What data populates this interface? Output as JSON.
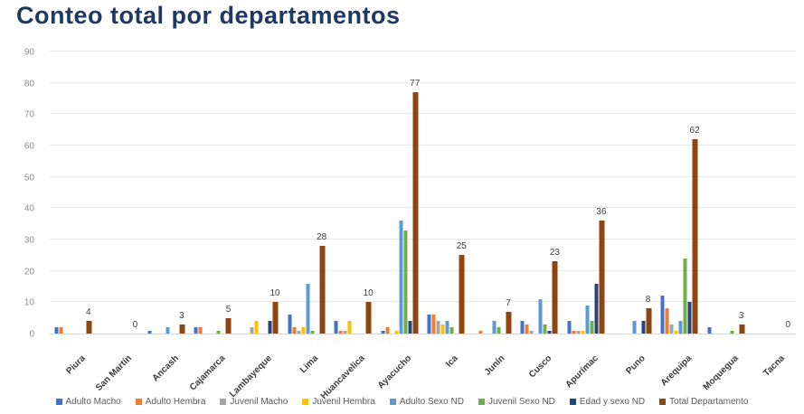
{
  "title": "Conteo total por departamentos",
  "chart_data": {
    "type": "bar",
    "title": "Conteo total por departamentos",
    "categories": [
      "Piura",
      "San Martín",
      "Ancash",
      "Cajamarca",
      "Lambayeque",
      "Lima",
      "Huancavelica",
      "Ayacucho",
      "Ica",
      "Junín",
      "Cusco",
      "Apurímac",
      "Puno",
      "Arequipa",
      "Moquegua",
      "Tacna"
    ],
    "series": [
      {
        "name": "Adulto Macho",
        "color": "#4472c4",
        "values": [
          2,
          0,
          1,
          2,
          0,
          6,
          4,
          1,
          6,
          0,
          4,
          4,
          0,
          12,
          2,
          0
        ]
      },
      {
        "name": "Adulto Hembra",
        "color": "#ed7d31",
        "values": [
          2,
          0,
          0,
          2,
          0,
          2,
          1,
          2,
          6,
          1,
          3,
          1,
          0,
          8,
          0,
          0
        ]
      },
      {
        "name": "Juvenil Macho",
        "color": "#a5a5a5",
        "values": [
          0,
          0,
          0,
          0,
          2,
          1,
          1,
          0,
          4,
          0,
          1,
          1,
          0,
          3,
          0,
          0
        ]
      },
      {
        "name": "Juvenil Hembra",
        "color": "#ffc000",
        "values": [
          0,
          0,
          0,
          0,
          4,
          2,
          4,
          1,
          3,
          0,
          0,
          1,
          0,
          1,
          0,
          0
        ]
      },
      {
        "name": "Adulto Sexo ND",
        "color": "#5b9bd5",
        "values": [
          0,
          0,
          2,
          0,
          0,
          16,
          0,
          36,
          4,
          4,
          11,
          9,
          4,
          4,
          0,
          0
        ]
      },
      {
        "name": "Juvenil Sexo ND",
        "color": "#70ad47",
        "values": [
          0,
          0,
          0,
          1,
          0,
          1,
          0,
          33,
          2,
          2,
          3,
          4,
          0,
          24,
          1,
          0
        ]
      },
      {
        "name": "Edad y sexo ND",
        "color": "#264478",
        "values": [
          0,
          0,
          0,
          0,
          4,
          0,
          0,
          4,
          0,
          0,
          1,
          16,
          4,
          10,
          0,
          0
        ]
      },
      {
        "name": "Total Departamento",
        "color": "#8f4511",
        "values": [
          4,
          0,
          3,
          5,
          10,
          28,
          10,
          77,
          25,
          7,
          23,
          36,
          8,
          62,
          3,
          0
        ]
      }
    ],
    "data_labels": {
      "on_series": "Total Departamento",
      "values": [
        4,
        0,
        3,
        5,
        10,
        28,
        10,
        77,
        25,
        7,
        23,
        36,
        8,
        62,
        3,
        0
      ]
    },
    "ylabel": "",
    "xlabel": "",
    "ylim": [
      0,
      90
    ],
    "ytick_step": 10,
    "grid": true,
    "legend_position": "bottom"
  }
}
